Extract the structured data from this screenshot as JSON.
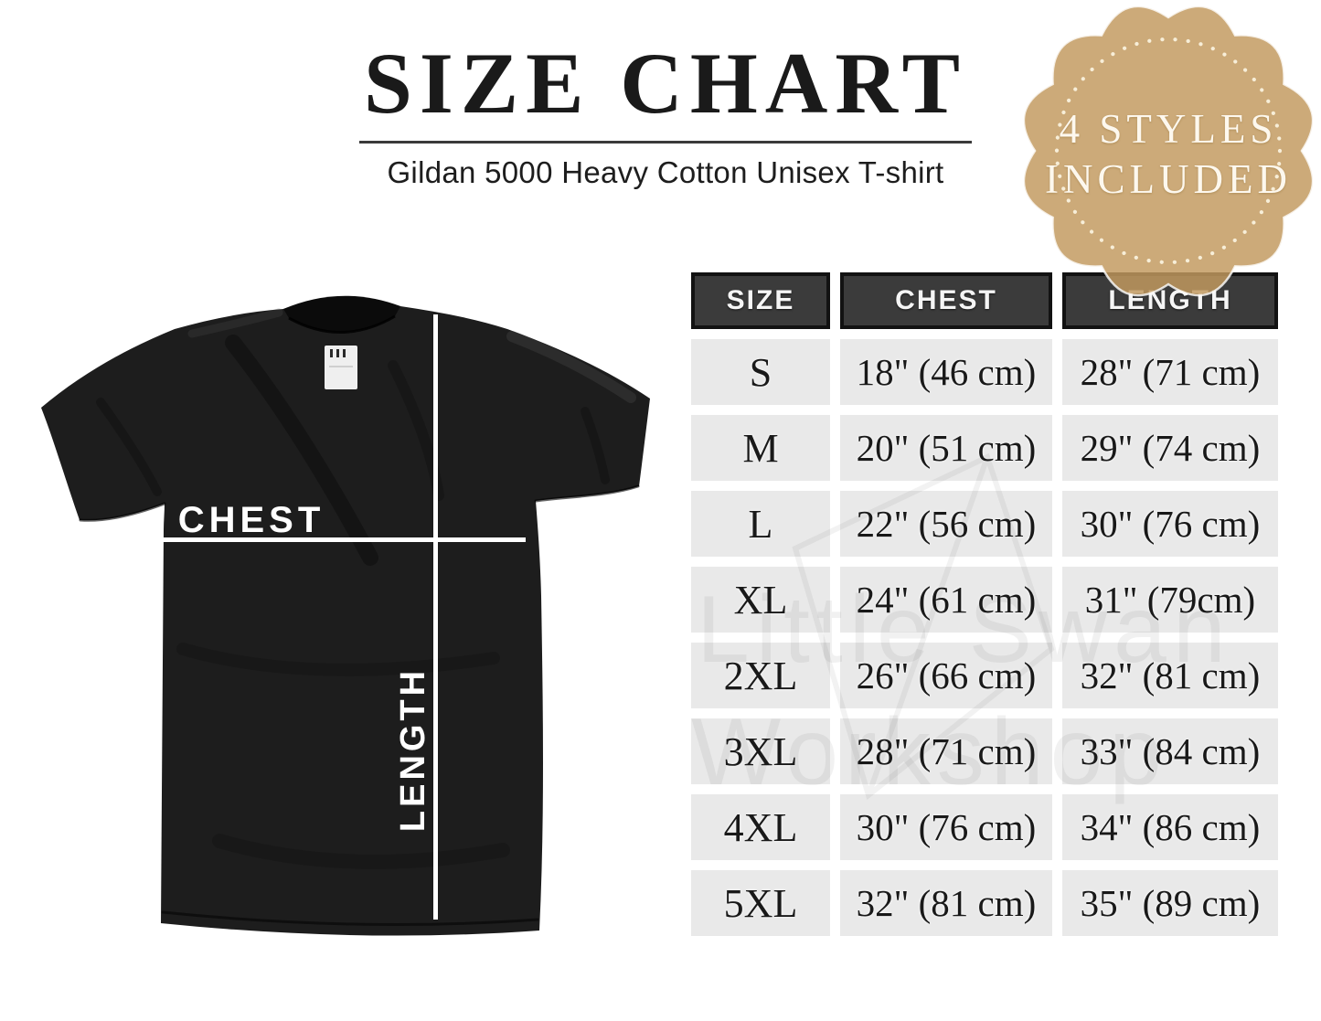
{
  "header": {
    "title": "SIZE CHART",
    "subtitle": "Gildan 5000 Heavy Cotton Unisex T-shirt"
  },
  "badge": {
    "line1": "4 STYLES",
    "line2": "INCLUDED",
    "fill": "#c29a5f",
    "dot_color": "#f7eed8",
    "text_color": "#fdf8ee"
  },
  "diagram": {
    "chest_label": "CHEST",
    "length_label": "LENGTH",
    "shirt_color": "#1d1d1d",
    "collar_color": "#0b0b0b",
    "tag_color": "#efefef",
    "line_color": "#ffffff"
  },
  "table": {
    "headers": [
      "SIZE",
      "CHEST",
      "LENGTH"
    ],
    "header_bg": "#3b3b3b",
    "cell_bg": "#e9e9e9",
    "rows": [
      {
        "size": "S",
        "chest": "18\" (46 cm)",
        "length": "28\" (71 cm)"
      },
      {
        "size": "M",
        "chest": "20\" (51 cm)",
        "length": "29\" (74 cm)"
      },
      {
        "size": "L",
        "chest": "22\" (56 cm)",
        "length": "30\" (76 cm)"
      },
      {
        "size": "XL",
        "chest": "24\" (61 cm)",
        "length": "31\" (79cm)"
      },
      {
        "size": "2XL",
        "chest": "26\" (66 cm)",
        "length": "32\" (81 cm)"
      },
      {
        "size": "3XL",
        "chest": "28\" (71 cm)",
        "length": "33\" (84 cm)"
      },
      {
        "size": "4XL",
        "chest": "30\" (76 cm)",
        "length": "34\" (86 cm)"
      },
      {
        "size": "5XL",
        "chest": "32\" (81 cm)",
        "length": "35\" (89 cm)"
      }
    ]
  },
  "watermark": {
    "line1": "Little Swan",
    "line2": "Workshop"
  }
}
